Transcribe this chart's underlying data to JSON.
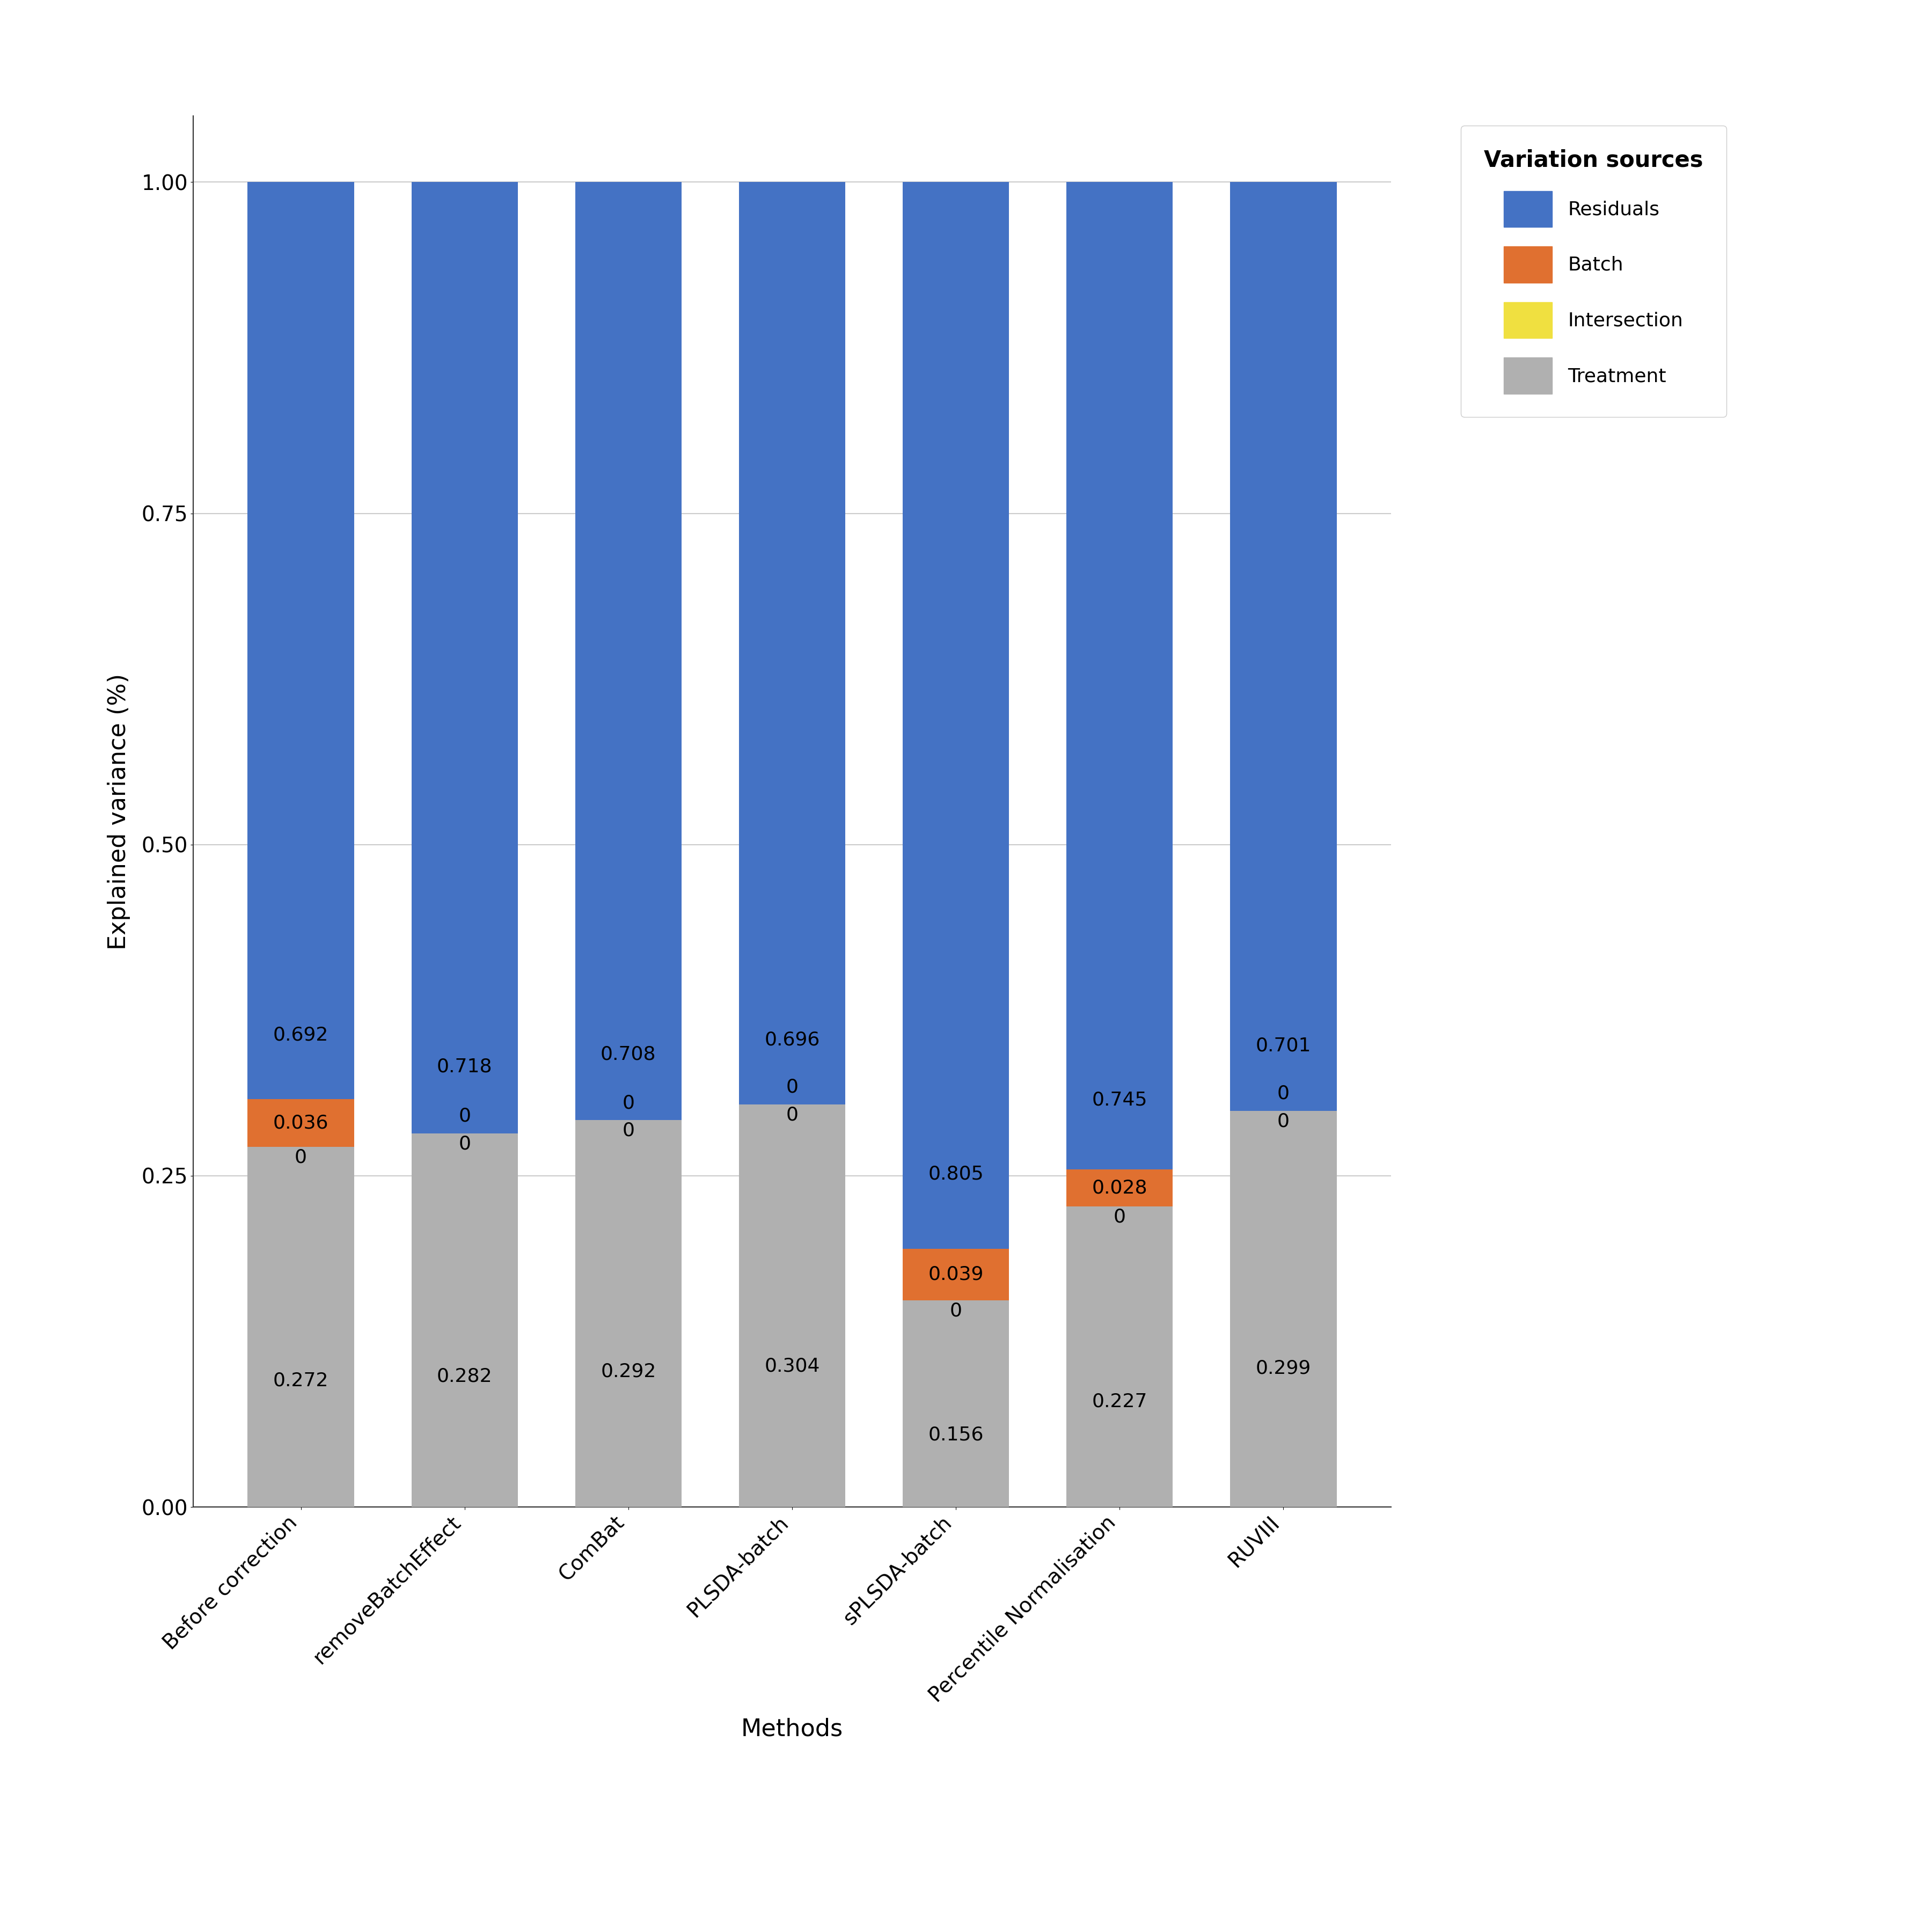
{
  "categories": [
    "Before correction",
    "removeBatchEffect",
    "ComBat",
    "PLSDA-batch",
    "sPLSDA-batch",
    "Percentile Normalisation",
    "RUVIII"
  ],
  "treatment": [
    0.272,
    0.282,
    0.292,
    0.304,
    0.156,
    0.227,
    0.299
  ],
  "intersection": [
    0.0,
    0.0,
    0.0,
    0.0,
    0.0,
    0.0,
    0.0
  ],
  "batch": [
    0.036,
    0.0,
    0.0,
    0.0,
    0.039,
    0.028,
    0.0
  ],
  "residuals": [
    0.692,
    0.718,
    0.708,
    0.696,
    0.805,
    0.745,
    0.701
  ],
  "treatment_labels": [
    "0.272",
    "0.282",
    "0.292",
    "0.304",
    "0.156",
    "0.227",
    "0.299"
  ],
  "intersection_labels": [
    "0",
    "0",
    "0",
    "0",
    "0",
    "0",
    "0"
  ],
  "batch_labels": [
    "0.036",
    "0",
    "0",
    "0",
    "0.039",
    "0.028",
    "0"
  ],
  "residuals_labels": [
    "0.692",
    "0.718",
    "0.708",
    "0.696",
    "0.805",
    "0.745",
    "0.701"
  ],
  "color_residuals": "#4472C4",
  "color_batch": "#E07030",
  "color_intersection": "#F0E040",
  "color_treatment": "#B0B0B0",
  "ylabel": "Explained variance (%)",
  "xlabel": "Methods",
  "legend_title": "Variation sources",
  "legend_labels": [
    "Residuals",
    "Batch",
    "Intersection",
    "Treatment"
  ],
  "ylim": [
    0,
    1.05
  ],
  "yticks": [
    0.0,
    0.25,
    0.5,
    0.75,
    1.0
  ],
  "bar_width": 0.65,
  "background_color": "#FFFFFF",
  "plot_background": "#FFFFFF",
  "grid_color": "#CCCCCC"
}
